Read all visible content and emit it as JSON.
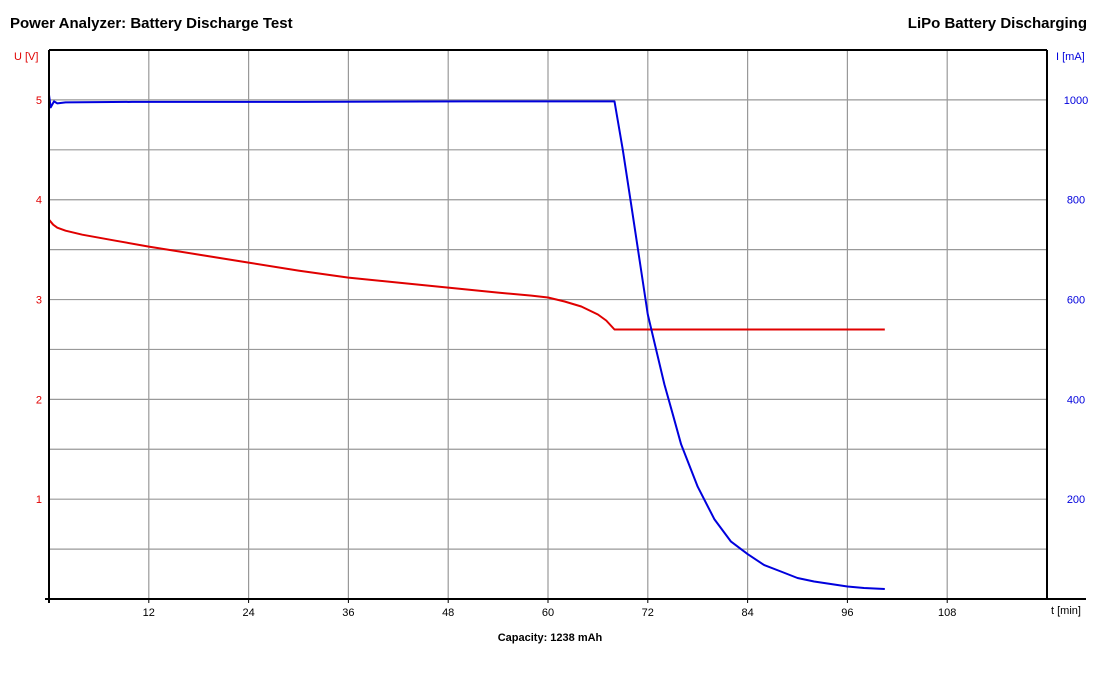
{
  "title_left": "Power Analyzer: Battery Discharge Test",
  "title_right": "LiPo Battery Discharging",
  "caption": "Capacity: 1238 mAh",
  "chart_data": {
    "type": "line",
    "x_unit_label": "t [min]",
    "y_left_label": "U [V]",
    "y_right_label": "I [mA]",
    "x_ticks": [
      12,
      24,
      36,
      48,
      60,
      72,
      84,
      96,
      108
    ],
    "y_left_ticks": [
      1,
      2,
      3,
      4,
      5
    ],
    "y_right_ticks": [
      200,
      400,
      600,
      800,
      1000
    ],
    "xlim": [
      0,
      120
    ],
    "y_left_lim": [
      0,
      5.5
    ],
    "y_right_lim": [
      0,
      1100
    ],
    "grid": true,
    "colors": {
      "voltage": "#e00000",
      "current": "#0000dd",
      "grid": "#999999",
      "axis": "#000000"
    },
    "series": [
      {
        "axis": "left",
        "color": "#e00000",
        "x": [
          0,
          0.5,
          1,
          2,
          4,
          6,
          8,
          12,
          18,
          24,
          30,
          36,
          42,
          48,
          54,
          58,
          60,
          62,
          64,
          66,
          67,
          68,
          69,
          72,
          80,
          90,
          100.5
        ],
        "y": [
          3.8,
          3.75,
          3.72,
          3.69,
          3.65,
          3.62,
          3.59,
          3.53,
          3.45,
          3.37,
          3.29,
          3.22,
          3.17,
          3.12,
          3.07,
          3.04,
          3.02,
          2.98,
          2.93,
          2.85,
          2.79,
          2.7,
          2.7,
          2.7,
          2.7,
          2.7,
          2.7
        ]
      },
      {
        "axis": "right",
        "color": "#0000dd",
        "x": [
          0,
          0.2,
          0.6,
          1,
          2,
          10,
          30,
          50,
          66,
          67,
          68,
          69,
          70,
          71,
          72,
          73,
          74,
          75,
          76,
          78,
          80,
          82,
          84,
          86,
          88,
          90,
          92,
          94,
          96,
          98,
          100.5
        ],
        "y": [
          1010,
          985,
          997,
          993,
          995,
          996,
          996,
          997,
          997,
          997,
          997,
          900,
          790,
          680,
          570,
          500,
          430,
          370,
          310,
          225,
          160,
          115,
          90,
          68,
          55,
          42,
          35,
          30,
          25,
          22,
          20
        ]
      }
    ]
  }
}
